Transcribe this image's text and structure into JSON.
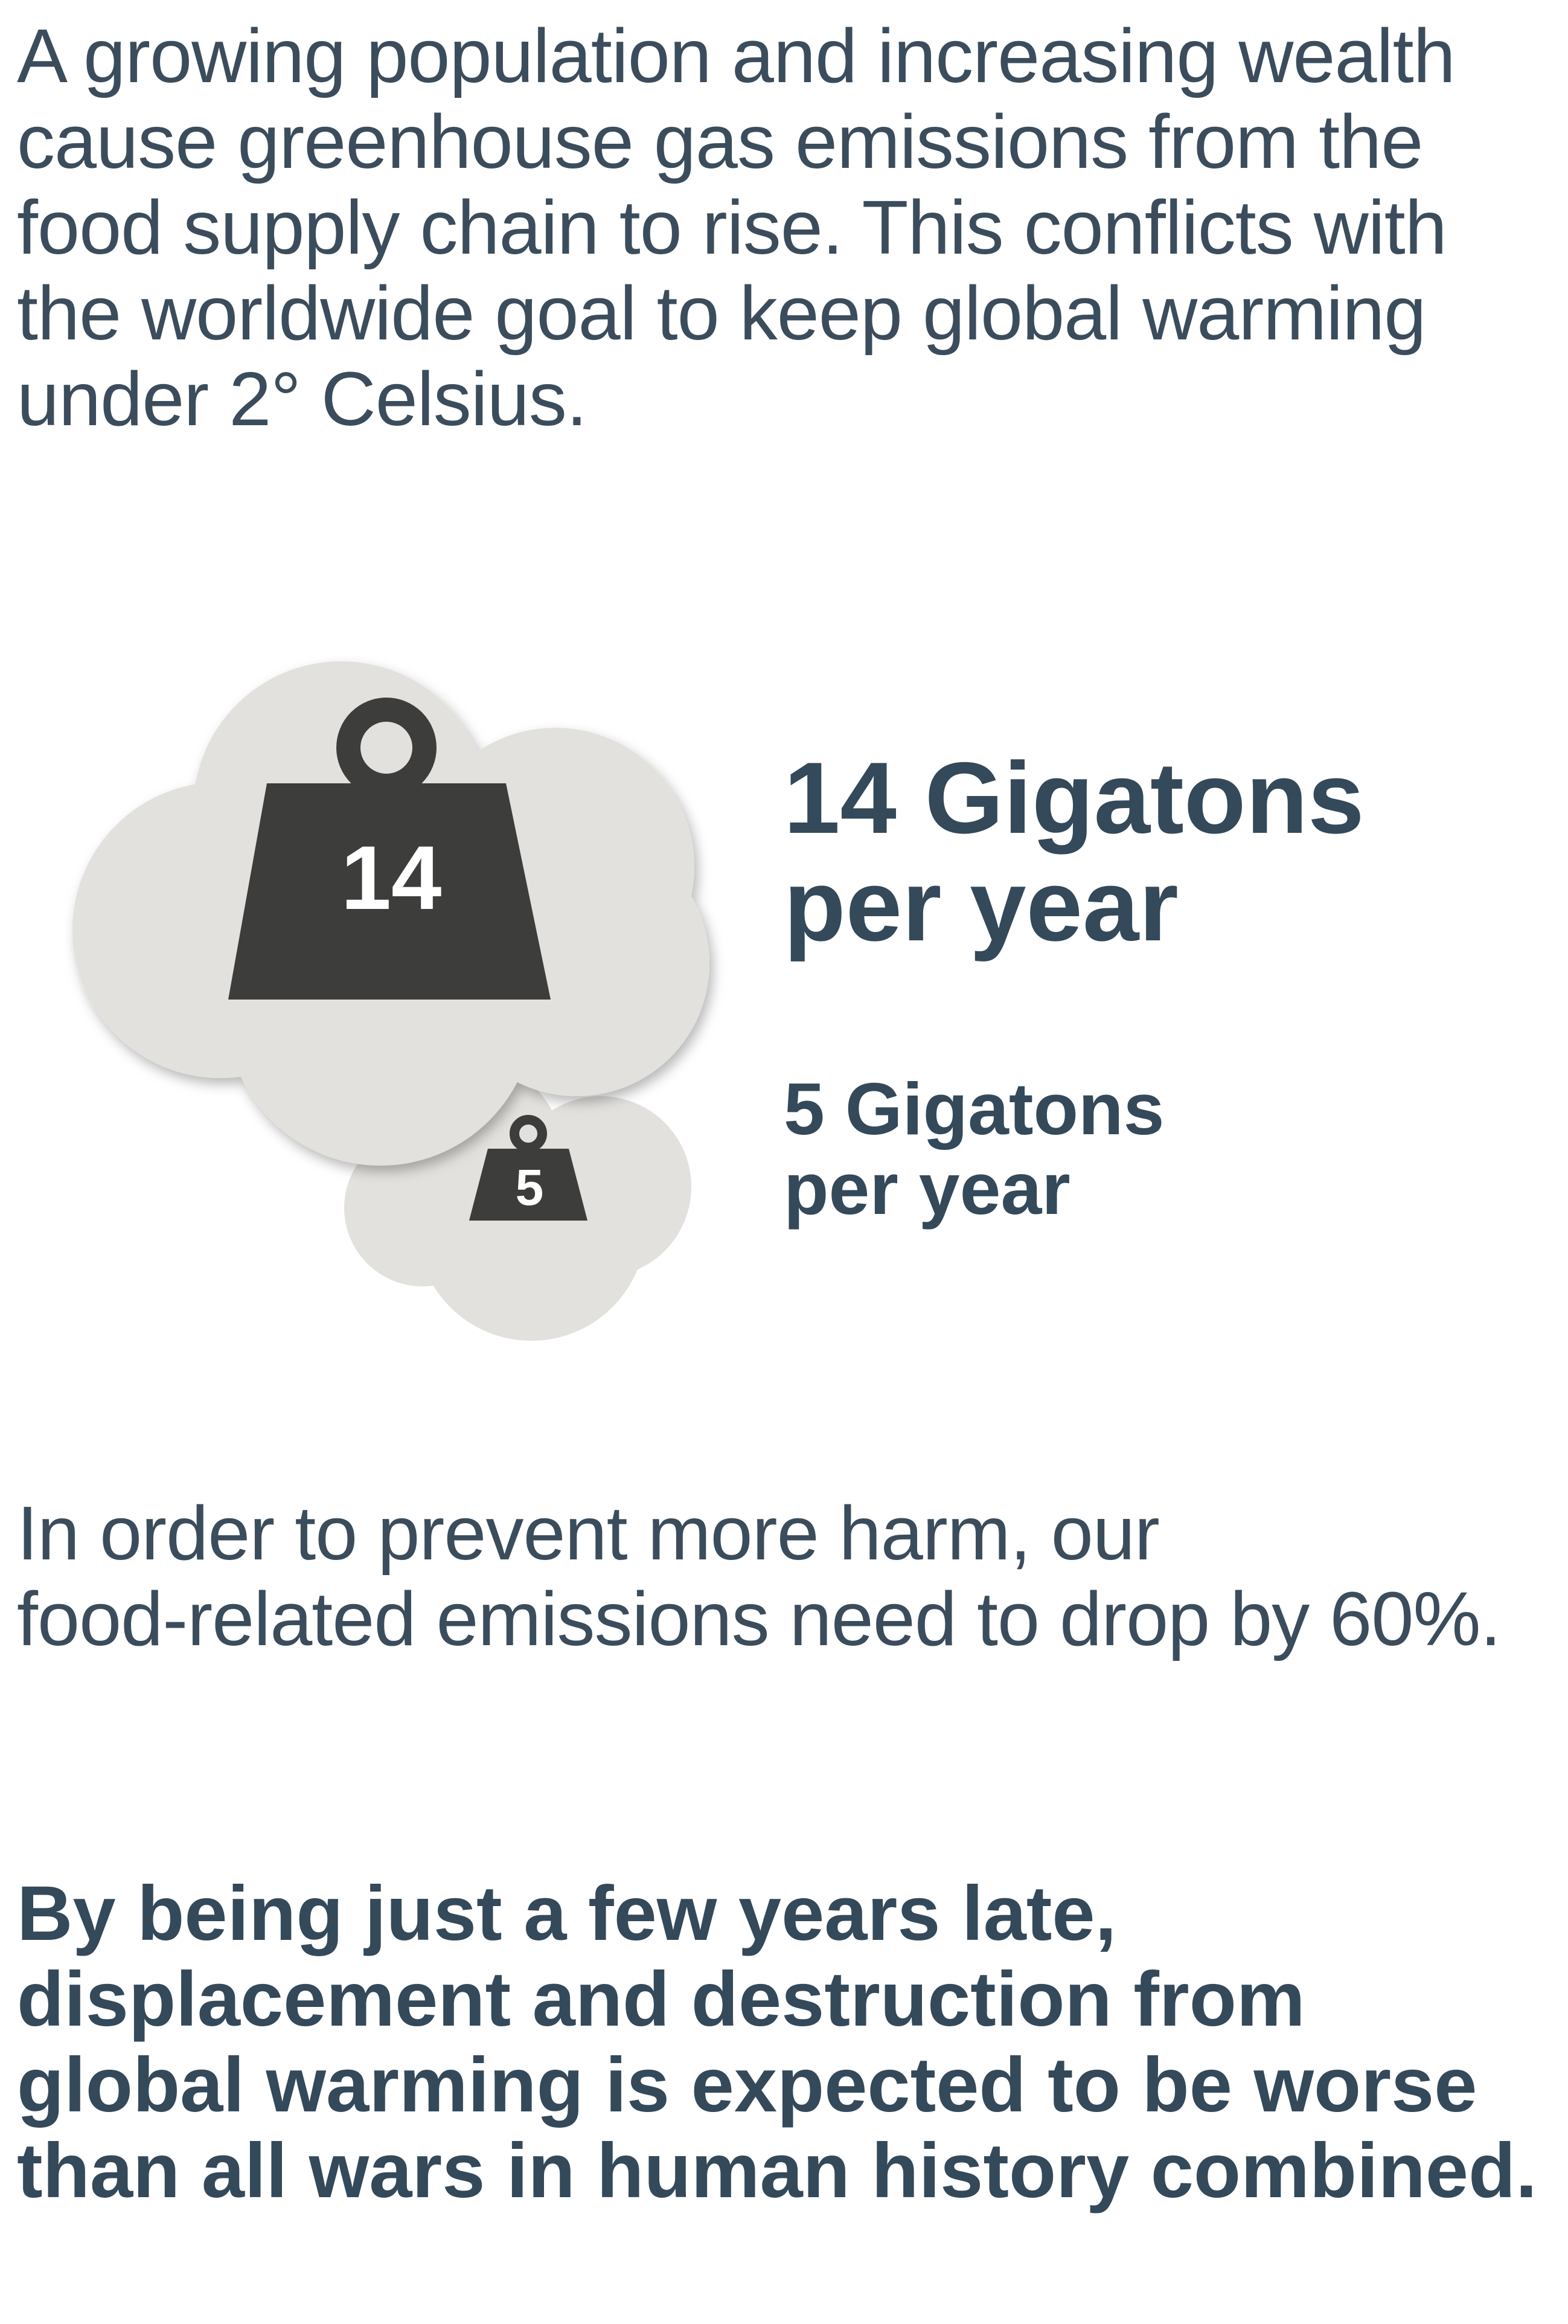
{
  "intro_text": "A growing population and increasing wealth cause greenhouse gas emissions from the food supply chain to rise. This conflicts with the worldwide goal to keep global warming under 2° Celsius.",
  "weights": {
    "large_label": "14",
    "small_label": "5"
  },
  "stats": {
    "current": {
      "line1": "14 Gigatons",
      "line2": "per year"
    },
    "target": {
      "line1": "5 Gigatons",
      "line2": "per year"
    }
  },
  "middle_text": {
    "line1": "In order to prevent more harm, our",
    "line2": "food-related emissions need to drop by 60%."
  },
  "closing_text": "By being just a few years late, displacement and destruction from global warming is expected to be worse than all wars in human history combined.",
  "colors": {
    "text": "#34495a",
    "cloud": "#e2e1de",
    "weight": "#3d3d3b",
    "weight_label": "#ffffff"
  }
}
